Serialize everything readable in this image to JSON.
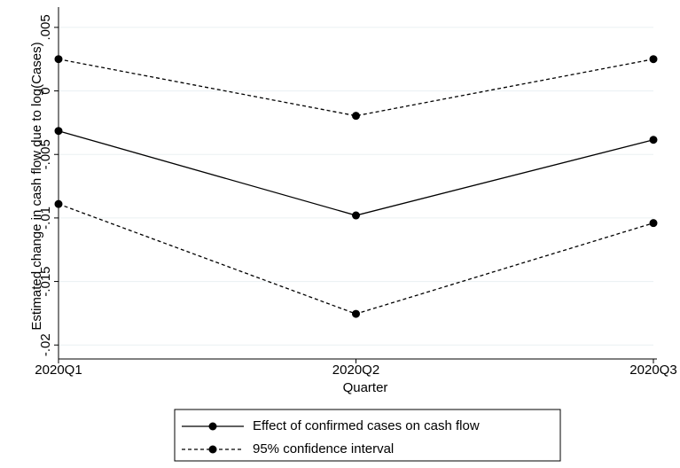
{
  "chart_data": {
    "type": "line",
    "x_label": "Quarter",
    "y_label": "Estimated change in cash flow due to log(Cases)",
    "categories": [
      "2020Q1",
      "2020Q2",
      "2020Q3"
    ],
    "series": [
      {
        "name": "Effect of confirmed cases on cash flow",
        "color": "#000000",
        "values": [
          -0.00315,
          -0.0098,
          -0.00385
        ]
      }
    ],
    "confidence_interval": {
      "name": "95% confidence interval",
      "color": "#000000",
      "upper": [
        0.0025,
        -0.00196,
        0.0025
      ],
      "lower": [
        -0.0089,
        -0.01755,
        -0.0104
      ]
    },
    "ylim": [
      -0.0211,
      0.0059
    ],
    "yticks": [
      {
        "value": 0.005,
        "label": ".005"
      },
      0,
      {
        "value": -0.005,
        "label": "-.005"
      },
      {
        "value": -0.01,
        "label": "-.01"
      },
      {
        "value": -0.015,
        "label": "-.015"
      },
      {
        "value": -0.02,
        "label": "-.02"
      }
    ],
    "grid": true,
    "legend": "bottom"
  }
}
